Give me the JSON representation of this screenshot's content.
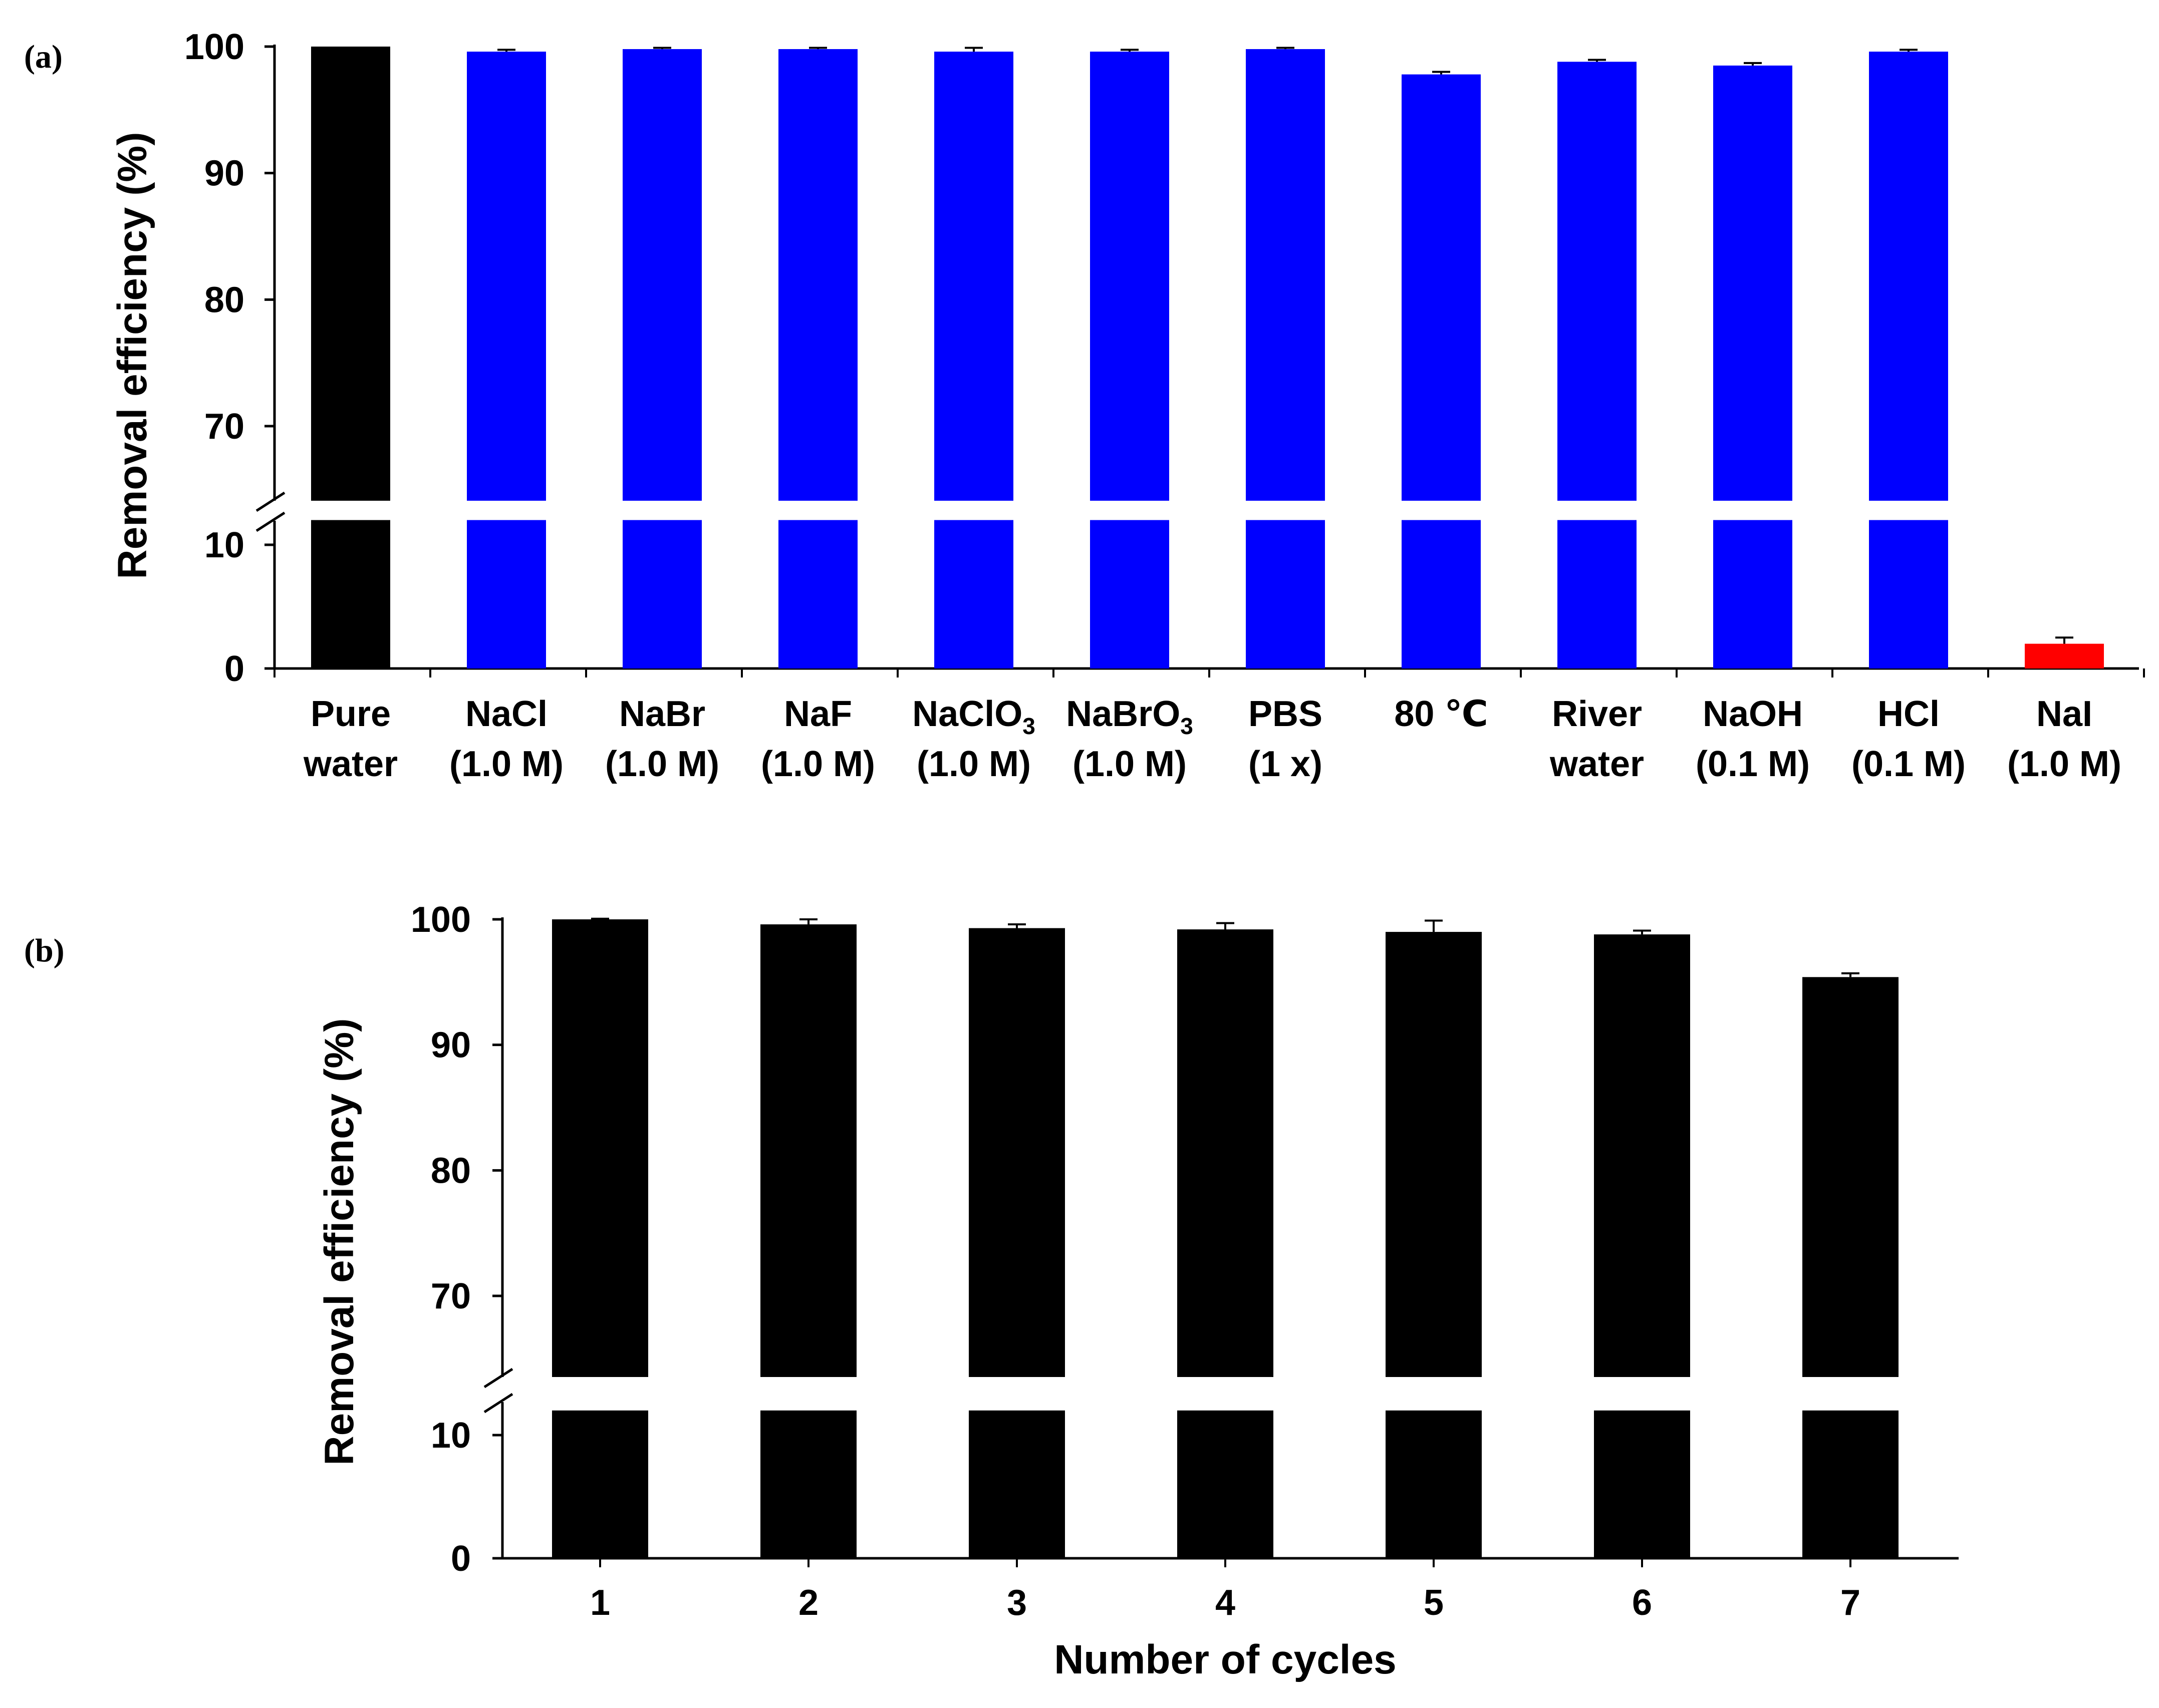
{
  "chart_data": [
    {
      "type": "bar",
      "panel_label": "(a)",
      "categories": [
        [
          "Pure",
          "water"
        ],
        [
          "NaCl",
          "(1.0 M)"
        ],
        [
          "NaBr",
          "(1.0 M)"
        ],
        [
          "NaF",
          "(1.0 M)"
        ],
        [
          "NaClO",
          "3",
          "(1.0 M)"
        ],
        [
          "NaBrO",
          "3",
          "(1.0 M)"
        ],
        [
          "PBS",
          "(1 x)"
        ],
        [
          "80 ℃"
        ],
        [
          "River",
          "water"
        ],
        [
          "NaOH",
          "(0.1 M)"
        ],
        [
          "HCl",
          "(0.1 M)"
        ],
        [
          "NaI",
          "(1.0 M)"
        ]
      ],
      "values": [
        100.0,
        99.6,
        99.8,
        99.8,
        99.6,
        99.6,
        99.8,
        97.8,
        98.8,
        98.5,
        99.6,
        2.0
      ],
      "errors": [
        0.0,
        0.15,
        0.1,
        0.1,
        0.3,
        0.15,
        0.1,
        0.2,
        0.15,
        0.2,
        0.15,
        0.5
      ],
      "colors": [
        "#000000",
        "#0000ff",
        "#0000ff",
        "#0000ff",
        "#0000ff",
        "#0000ff",
        "#0000ff",
        "#0000ff",
        "#0000ff",
        "#0000ff",
        "#0000ff",
        "#ff0000"
      ],
      "ylabel": "Removal efficiency (%)",
      "xlabel": "",
      "y_ticks": [
        "0",
        "10",
        "70",
        "80",
        "90",
        "100"
      ],
      "y_axis_break": [
        12,
        64
      ],
      "ylim": [
        0,
        100
      ]
    },
    {
      "type": "bar",
      "panel_label": "(b)",
      "categories": [
        "1",
        "2",
        "3",
        "4",
        "5",
        "6",
        "7"
      ],
      "values": [
        100.0,
        99.6,
        99.3,
        99.2,
        99.0,
        98.8,
        95.4
      ],
      "errors": [
        0.05,
        0.4,
        0.3,
        0.5,
        0.9,
        0.3,
        0.3
      ],
      "colors": [
        "#000000"
      ],
      "ylabel": "Removal efficiency (%)",
      "xlabel": "Number of cycles",
      "y_ticks": [
        "0",
        "10",
        "70",
        "80",
        "90",
        "100"
      ],
      "y_axis_break": [
        12,
        64
      ],
      "ylim": [
        0,
        100
      ]
    }
  ]
}
